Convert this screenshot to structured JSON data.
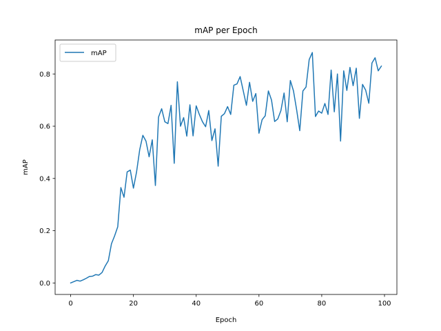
{
  "chart_data": {
    "type": "line",
    "title": "mAP per Epoch",
    "xlabel": "Epoch",
    "ylabel": "mAP",
    "xlim": [
      -4.95,
      103.95
    ],
    "ylim": [
      -0.044,
      0.93
    ],
    "xticks": [
      0,
      20,
      40,
      60,
      80,
      100
    ],
    "xtick_labels": [
      "0",
      "20",
      "40",
      "60",
      "80",
      "100"
    ],
    "yticks": [
      0.0,
      0.2,
      0.4,
      0.6,
      0.8
    ],
    "ytick_labels": [
      "0.0",
      "0.2",
      "0.4",
      "0.6",
      "0.8"
    ],
    "grid": false,
    "legend_position": "upper-left",
    "series": [
      {
        "name": "mAP",
        "color": "#1f77b4",
        "x": [
          0,
          1,
          2,
          3,
          4,
          5,
          6,
          7,
          8,
          9,
          10,
          11,
          12,
          13,
          14,
          15,
          16,
          17,
          18,
          19,
          20,
          21,
          22,
          23,
          24,
          25,
          26,
          27,
          28,
          29,
          30,
          31,
          32,
          33,
          34,
          35,
          36,
          37,
          38,
          39,
          40,
          41,
          42,
          43,
          44,
          45,
          46,
          47,
          48,
          49,
          50,
          51,
          52,
          53,
          54,
          55,
          56,
          57,
          58,
          59,
          60,
          61,
          62,
          63,
          64,
          65,
          66,
          67,
          68,
          69,
          70,
          71,
          72,
          73,
          74,
          75,
          76,
          77,
          78,
          79,
          80,
          81,
          82,
          83,
          84,
          85,
          86,
          87,
          88,
          89,
          90,
          91,
          92,
          93,
          94,
          95,
          96,
          97,
          98,
          99
        ],
        "y": [
          0.0,
          0.005,
          0.01,
          0.007,
          0.012,
          0.018,
          0.025,
          0.026,
          0.032,
          0.03,
          0.04,
          0.065,
          0.085,
          0.15,
          0.18,
          0.215,
          0.365,
          0.328,
          0.425,
          0.432,
          0.363,
          0.425,
          0.51,
          0.565,
          0.543,
          0.483,
          0.548,
          0.373,
          0.635,
          0.667,
          0.617,
          0.61,
          0.68,
          0.458,
          0.77,
          0.6,
          0.633,
          0.562,
          0.682,
          0.563,
          0.678,
          0.645,
          0.617,
          0.598,
          0.66,
          0.545,
          0.59,
          0.447,
          0.638,
          0.648,
          0.675,
          0.645,
          0.757,
          0.762,
          0.79,
          0.735,
          0.68,
          0.768,
          0.695,
          0.725,
          0.573,
          0.625,
          0.64,
          0.735,
          0.7,
          0.618,
          0.628,
          0.66,
          0.727,
          0.617,
          0.775,
          0.735,
          0.663,
          0.583,
          0.735,
          0.75,
          0.855,
          0.882,
          0.637,
          0.658,
          0.65,
          0.687,
          0.645,
          0.815,
          0.655,
          0.8,
          0.543,
          0.812,
          0.737,
          0.825,
          0.755,
          0.822,
          0.63,
          0.76,
          0.738,
          0.688,
          0.842,
          0.862,
          0.812,
          0.83
        ]
      }
    ]
  }
}
